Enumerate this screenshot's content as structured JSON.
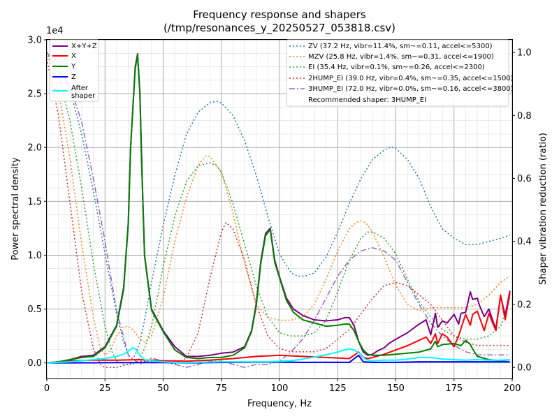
{
  "chart_data": {
    "type": "line",
    "title": "Frequency response and shapers",
    "subtitle": "(/tmp/resonances_y_20250527_053818.csv)",
    "xlabel": "Frequency, Hz",
    "ylabel": "Power spectral density",
    "y2label": "Shaper vibration reduction (ratio)",
    "y_offset_label": "1e4",
    "xlim": [
      0,
      200
    ],
    "ylim": [
      -1450,
      30000
    ],
    "y2lim": [
      -0.035,
      1.04
    ],
    "grid": true,
    "x_ticks": [
      0,
      25,
      50,
      75,
      100,
      125,
      150,
      175,
      200
    ],
    "y_ticks": [
      0,
      5000,
      10000,
      15000,
      20000,
      25000,
      30000
    ],
    "y_tick_labels": [
      "0.0",
      "0.5",
      "1.0",
      "1.5",
      "2.0",
      "2.5",
      "3.0"
    ],
    "y2_ticks": [
      0.0,
      0.2,
      0.4,
      0.6,
      0.8,
      1.0
    ],
    "y2_tick_labels": [
      "0.0",
      "0.2",
      "0.4",
      "0.6",
      "0.8",
      "1.0"
    ],
    "legend_left": {
      "placement": "top-left",
      "entries": [
        "X+Y+Z",
        "X",
        "Y",
        "Z",
        "After\nshaper"
      ]
    },
    "legend_right": {
      "placement": "top-right",
      "entries": [
        "ZV (37.2 Hz, vibr=11.4%, sm~=0.11, accel<=5300)",
        "MZV (25.8 Hz, vibr=1.4%, sm~=0.31, accel<=1900)",
        "EI (35.4 Hz, vibr=0.1%, sm~=0.26, accel<=2300)",
        "2HUMP_EI (39.0 Hz, vibr=0.4%, sm~=0.35, accel<=1500)",
        "3HUMP_EI (72.0 Hz, vibr=0.0%, sm~=0.16, accel<=3800)",
        "Recommended shaper: 3HUMP_EI"
      ]
    },
    "series": [
      {
        "name": "X+Y+Z",
        "color": "#800080",
        "axis": "left",
        "style": "solid",
        "x": [
          0,
          5,
          10,
          15,
          20,
          25,
          30,
          33,
          35,
          36,
          38,
          39,
          40,
          41,
          42,
          45,
          50,
          55,
          60,
          65,
          70,
          75,
          80,
          85,
          88,
          90,
          92,
          94,
          96,
          98,
          100,
          103,
          106,
          110,
          115,
          120,
          125,
          128,
          130,
          132,
          134,
          136,
          138,
          140,
          142,
          145,
          147,
          150,
          155,
          160,
          163,
          165,
          167,
          168,
          170,
          172,
          175,
          177,
          178,
          180,
          182,
          183,
          185,
          186,
          188,
          190,
          192,
          193,
          195,
          197,
          199
        ],
        "y": [
          0,
          100,
          300,
          600,
          700,
          1500,
          3500,
          7000,
          13000,
          20000,
          27500,
          28700,
          25000,
          17000,
          10000,
          5000,
          3000,
          1500,
          600,
          600,
          700,
          900,
          1000,
          1500,
          3000,
          5500,
          9500,
          12000,
          12500,
          9500,
          8000,
          6000,
          5000,
          4400,
          4000,
          3900,
          4000,
          4200,
          4200,
          3500,
          2000,
          1000,
          700,
          800,
          1100,
          1400,
          1800,
          2200,
          2800,
          3600,
          4000,
          2600,
          4600,
          3300,
          3900,
          3700,
          4500,
          3600,
          4600,
          4700,
          6600,
          5900,
          6000,
          5300,
          4300,
          5000,
          3700,
          3200,
          6200,
          4400,
          6700
        ]
      },
      {
        "name": "X",
        "color": "#ff0000",
        "axis": "left",
        "style": "solid",
        "x": [
          0,
          10,
          20,
          30,
          40,
          50,
          60,
          70,
          80,
          90,
          100,
          110,
          120,
          130,
          134,
          136,
          138,
          140,
          145,
          150,
          155,
          160,
          163,
          165,
          167,
          168,
          170,
          172,
          175,
          177,
          178,
          180,
          182,
          183,
          185,
          186,
          188,
          190,
          192,
          193,
          195,
          197,
          199
        ],
        "y": [
          0,
          200,
          250,
          250,
          300,
          200,
          150,
          250,
          400,
          600,
          700,
          600,
          500,
          400,
          1000,
          500,
          400,
          500,
          800,
          1200,
          1600,
          2100,
          2400,
          1800,
          2700,
          1800,
          2700,
          2400,
          1500,
          2500,
          3200,
          4500,
          3500,
          4500,
          4800,
          4200,
          3000,
          4600,
          3500,
          3000,
          6300,
          4000,
          6500
        ]
      },
      {
        "name": "Y",
        "color": "#008000",
        "axis": "left",
        "style": "solid",
        "x": [
          0,
          5,
          10,
          15,
          20,
          25,
          30,
          33,
          35,
          36,
          38,
          39,
          40,
          41,
          42,
          45,
          50,
          55,
          60,
          65,
          70,
          75,
          80,
          85,
          88,
          90,
          92,
          94,
          96,
          98,
          100,
          103,
          106,
          110,
          115,
          120,
          125,
          128,
          130,
          132,
          134,
          136,
          138,
          140,
          145,
          150,
          155,
          160,
          165,
          167,
          168,
          170,
          175,
          178,
          180,
          182,
          183,
          185,
          190,
          195,
          199
        ],
        "y": [
          0,
          100,
          300,
          500,
          600,
          1400,
          3400,
          6800,
          12900,
          20000,
          27300,
          28600,
          25000,
          17000,
          9900,
          4900,
          2900,
          1200,
          500,
          400,
          500,
          500,
          700,
          1400,
          2900,
          5300,
          9300,
          11800,
          12400,
          9300,
          7900,
          5800,
          4700,
          4000,
          3700,
          3400,
          3500,
          3600,
          3600,
          3000,
          2000,
          1200,
          800,
          700,
          700,
          800,
          900,
          1000,
          1300,
          2000,
          1500,
          1700,
          1800,
          1600,
          2100,
          1700,
          1300,
          600,
          300,
          200,
          300
        ]
      },
      {
        "name": "Z",
        "color": "#0000ff",
        "axis": "left",
        "style": "solid",
        "x": [
          0,
          10,
          20,
          30,
          40,
          50,
          60,
          70,
          80,
          90,
          100,
          110,
          120,
          130,
          134,
          136,
          140,
          150,
          160,
          170,
          180,
          190,
          199
        ],
        "y": [
          0,
          0,
          10,
          20,
          30,
          20,
          0,
          20,
          50,
          80,
          80,
          50,
          60,
          50,
          700,
          100,
          50,
          50,
          100,
          100,
          100,
          100,
          100
        ]
      },
      {
        "name": "After shaper",
        "color": "#00ffff",
        "axis": "left",
        "style": "solid",
        "x": [
          0,
          5,
          10,
          15,
          20,
          25,
          30,
          33,
          35,
          37,
          38,
          39,
          40,
          42,
          45,
          50,
          55,
          60,
          65,
          70,
          75,
          80,
          85,
          90,
          95,
          100,
          105,
          110,
          115,
          120,
          125,
          128,
          130,
          132,
          135,
          137,
          140,
          145,
          150,
          155,
          160,
          165,
          170,
          175,
          180,
          185,
          190,
          195,
          199
        ],
        "y": [
          0,
          50,
          100,
          200,
          300,
          400,
          600,
          800,
          1100,
          1400,
          1300,
          1000,
          700,
          300,
          200,
          100,
          30,
          30,
          50,
          80,
          100,
          100,
          100,
          100,
          100,
          150,
          200,
          350,
          550,
          750,
          1000,
          1200,
          1300,
          1200,
          800,
          300,
          200,
          250,
          250,
          350,
          500,
          500,
          350,
          300,
          250,
          300,
          250,
          250,
          300
        ]
      },
      {
        "name": "ZV",
        "color": "#1f77b4",
        "axis": "right",
        "style": "dotted",
        "x": [
          0,
          5,
          10,
          15,
          20,
          25,
          30,
          33,
          35,
          36,
          37,
          38,
          39,
          40,
          42,
          45,
          50,
          55,
          60,
          65,
          70,
          73,
          75,
          80,
          85,
          90,
          95,
          100,
          105,
          108,
          111,
          115,
          120,
          125,
          130,
          135,
          140,
          145,
          148,
          150,
          155,
          160,
          165,
          170,
          175,
          180,
          185,
          190,
          195,
          199
        ],
        "y": [
          1.0,
          0.97,
          0.88,
          0.74,
          0.56,
          0.36,
          0.17,
          0.08,
          0.04,
          0.03,
          0.03,
          0.04,
          0.06,
          0.08,
          0.15,
          0.27,
          0.45,
          0.61,
          0.74,
          0.81,
          0.84,
          0.845,
          0.84,
          0.8,
          0.72,
          0.61,
          0.48,
          0.36,
          0.3,
          0.29,
          0.29,
          0.3,
          0.35,
          0.43,
          0.52,
          0.6,
          0.66,
          0.69,
          0.7,
          0.695,
          0.66,
          0.6,
          0.51,
          0.44,
          0.41,
          0.39,
          0.39,
          0.4,
          0.41,
          0.42
        ]
      },
      {
        "name": "MZV",
        "color": "#ff7f0e",
        "axis": "right",
        "style": "dotted",
        "x": [
          0,
          5,
          10,
          15,
          20,
          23,
          25,
          27,
          30,
          33,
          35,
          37,
          40,
          42,
          45,
          50,
          55,
          60,
          65,
          68,
          70,
          75,
          80,
          85,
          90,
          95,
          100,
          105,
          110,
          115,
          120,
          125,
          130,
          133,
          135,
          137,
          140,
          145,
          150,
          155,
          160,
          165,
          170,
          175,
          180,
          185,
          190,
          195,
          199
        ],
        "y": [
          1.0,
          0.88,
          0.66,
          0.39,
          0.16,
          0.06,
          0.04,
          0.05,
          0.1,
          0.13,
          0.13,
          0.12,
          0.09,
          0.08,
          0.1,
          0.22,
          0.4,
          0.54,
          0.64,
          0.67,
          0.67,
          0.62,
          0.49,
          0.33,
          0.2,
          0.16,
          0.15,
          0.15,
          0.16,
          0.2,
          0.28,
          0.37,
          0.44,
          0.46,
          0.465,
          0.46,
          0.43,
          0.35,
          0.26,
          0.2,
          0.18,
          0.19,
          0.19,
          0.19,
          0.19,
          0.2,
          0.23,
          0.27,
          0.29
        ]
      },
      {
        "name": "EI",
        "color": "#2ca02c",
        "axis": "right",
        "style": "dotted",
        "x": [
          0,
          5,
          10,
          15,
          20,
          25,
          28,
          30,
          33,
          35,
          37,
          40,
          42,
          45,
          48,
          50,
          55,
          60,
          65,
          70,
          73,
          75,
          80,
          85,
          90,
          95,
          100,
          105,
          110,
          115,
          120,
          125,
          130,
          135,
          138,
          140,
          145,
          150,
          155,
          160,
          165,
          170,
          175,
          180,
          185,
          190,
          195,
          199
        ],
        "y": [
          1.0,
          0.93,
          0.78,
          0.57,
          0.33,
          0.13,
          0.05,
          0.02,
          0.01,
          0.01,
          0.01,
          0.03,
          0.06,
          0.13,
          0.24,
          0.32,
          0.48,
          0.59,
          0.64,
          0.65,
          0.64,
          0.62,
          0.52,
          0.39,
          0.26,
          0.16,
          0.11,
          0.1,
          0.1,
          0.11,
          0.15,
          0.24,
          0.34,
          0.41,
          0.43,
          0.43,
          0.41,
          0.36,
          0.28,
          0.21,
          0.16,
          0.12,
          0.1,
          0.09,
          0.09,
          0.1,
          0.13,
          0.22
        ]
      },
      {
        "name": "2HUMP_EI",
        "color": "#d62728",
        "axis": "right",
        "style": "dotted",
        "x": [
          0,
          5,
          10,
          15,
          20,
          23,
          25,
          28,
          30,
          35,
          40,
          45,
          50,
          55,
          60,
          65,
          70,
          75,
          77,
          80,
          85,
          90,
          95,
          100,
          105,
          110,
          115,
          120,
          125,
          130,
          135,
          140,
          145,
          150,
          155,
          160,
          165,
          170,
          175,
          180,
          185,
          190,
          195,
          199
        ],
        "y": [
          0.98,
          0.8,
          0.52,
          0.24,
          0.06,
          0.01,
          0.0,
          0.0,
          0.0,
          0.01,
          0.02,
          0.02,
          0.02,
          0.01,
          0.03,
          0.11,
          0.28,
          0.43,
          0.46,
          0.44,
          0.34,
          0.2,
          0.1,
          0.06,
          0.05,
          0.05,
          0.05,
          0.06,
          0.09,
          0.12,
          0.17,
          0.22,
          0.26,
          0.27,
          0.26,
          0.23,
          0.2,
          0.15,
          0.1,
          0.08,
          0.07,
          0.07,
          0.07,
          0.07
        ]
      },
      {
        "name": "3HUMP_EI",
        "color": "#9467bd",
        "axis": "right",
        "style": "dashdot",
        "x": [
          0,
          10,
          15,
          20,
          25,
          27,
          30,
          35,
          40,
          45,
          50,
          55,
          60,
          65,
          70,
          75,
          80,
          85,
          90,
          95,
          100,
          105,
          110,
          115,
          120,
          125,
          130,
          135,
          140,
          145,
          150,
          155,
          160,
          165,
          170,
          175,
          180,
          185,
          190,
          195,
          199
        ],
        "y": [
          1.0,
          0.89,
          0.78,
          0.6,
          0.4,
          0.31,
          0.18,
          0.04,
          0.01,
          0.03,
          0.02,
          0.01,
          0.0,
          0.01,
          0.02,
          0.02,
          0.01,
          0.0,
          0.01,
          0.01,
          0.02,
          0.05,
          0.09,
          0.15,
          0.22,
          0.29,
          0.34,
          0.37,
          0.38,
          0.37,
          0.34,
          0.27,
          0.2,
          0.14,
          0.1,
          0.07,
          0.05,
          0.04,
          0.04,
          0.04,
          0.04
        ]
      }
    ]
  }
}
